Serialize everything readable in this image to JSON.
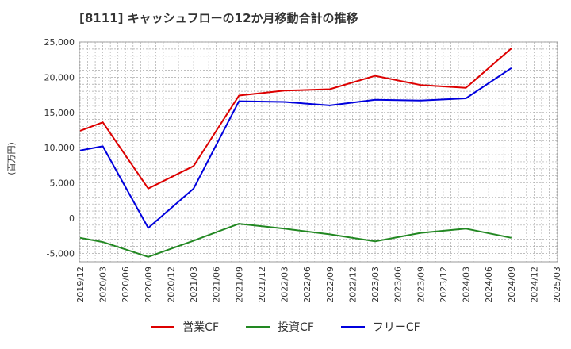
{
  "chart_data": {
    "type": "line",
    "title": "[8111]  キャッシュフローの12か月移動合計の推移",
    "ylabel": "(百万円)",
    "xlabel": "",
    "ylim": [
      -6200,
      25000
    ],
    "yticks": [
      25000,
      20000,
      15000,
      10000,
      5000,
      0,
      -5000
    ],
    "ytick_labels": [
      "25,000",
      "20,000",
      "15,000",
      "10,000",
      "5,000",
      "0",
      "-5,000"
    ],
    "xtick_labels": [
      "2019/12",
      "2020/03",
      "2020/06",
      "2020/09",
      "2020/12",
      "2021/03",
      "2021/06",
      "2021/09",
      "2021/12",
      "2022/03",
      "2022/06",
      "2022/09",
      "2022/12",
      "2023/03",
      "2023/06",
      "2023/09",
      "2023/12",
      "2024/03",
      "2024/06",
      "2024/09",
      "2024/12",
      "2025/03"
    ],
    "series": [
      {
        "name": "営業CF",
        "color": "#dd0000",
        "points": [
          [
            0,
            12400
          ],
          [
            1,
            13600
          ],
          [
            3,
            4200
          ],
          [
            5,
            7400
          ],
          [
            7,
            17400
          ],
          [
            9,
            18100
          ],
          [
            11,
            18300
          ],
          [
            13,
            20200
          ],
          [
            15,
            18900
          ],
          [
            17,
            18500
          ],
          [
            19,
            24100
          ]
        ]
      },
      {
        "name": "投資CF",
        "color": "#228822",
        "points": [
          [
            0,
            -2800
          ],
          [
            1,
            -3400
          ],
          [
            3,
            -5500
          ],
          [
            5,
            -3200
          ],
          [
            7,
            -800
          ],
          [
            9,
            -1500
          ],
          [
            11,
            -2300
          ],
          [
            13,
            -3300
          ],
          [
            15,
            -2100
          ],
          [
            17,
            -1500
          ],
          [
            19,
            -2800
          ]
        ]
      },
      {
        "name": "フリーCF",
        "color": "#0000dd",
        "points": [
          [
            0,
            9600
          ],
          [
            1,
            10200
          ],
          [
            3,
            -1400
          ],
          [
            5,
            4200
          ],
          [
            7,
            16600
          ],
          [
            9,
            16500
          ],
          [
            11,
            16000
          ],
          [
            13,
            16800
          ],
          [
            15,
            16700
          ],
          [
            17,
            17000
          ],
          [
            19,
            21300
          ]
        ]
      }
    ]
  }
}
